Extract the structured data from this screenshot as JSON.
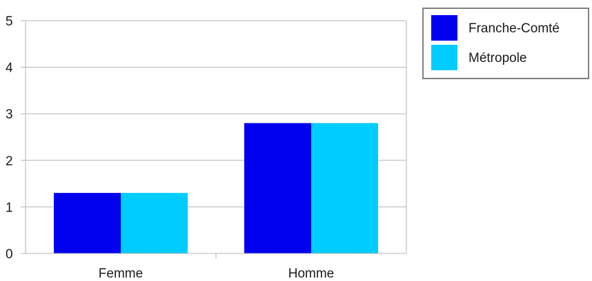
{
  "chart_data": {
    "type": "bar",
    "categories": [
      "Femme",
      "Homme"
    ],
    "series": [
      {
        "name": "Franche-Comté",
        "values": [
          1.3,
          2.8
        ],
        "color": "#0000ee"
      },
      {
        "name": "Métropole",
        "values": [
          1.3,
          2.8
        ],
        "color": "#00ccff"
      }
    ],
    "ylim": [
      0,
      5
    ],
    "yticks": [
      "0",
      "1",
      "2",
      "3",
      "4",
      "5"
    ],
    "grid": true,
    "legend_position": "top-right",
    "colors": {
      "axis": "#b3b3b3",
      "grid": "#b3b3b3",
      "legend_border": "#808080",
      "text": "#1a1a1a"
    }
  }
}
